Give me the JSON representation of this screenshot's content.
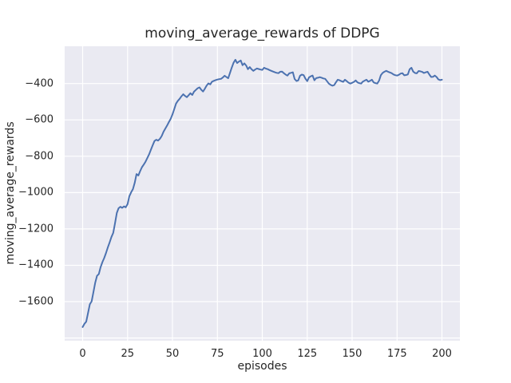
{
  "figure": {
    "background": "#ffffff",
    "axes_background": "#eaeaf2",
    "grid_color": "#ffffff",
    "text_color": "#262626",
    "line_color": "#4c72b0"
  },
  "chart_data": {
    "type": "line",
    "title": "moving_average_rewards of DDPG",
    "xlabel": "episodes",
    "ylabel": "moving_average_rewards",
    "xlim": [
      -10,
      210
    ],
    "ylim": [
      -1815,
      -195
    ],
    "xticks": [
      0,
      25,
      50,
      75,
      100,
      125,
      150,
      175,
      200
    ],
    "yticks": [
      -400,
      -600,
      -800,
      -1000,
      -1200,
      -1400,
      -1600
    ],
    "ygrid": [
      -400,
      -600,
      -800,
      -1000,
      -1200,
      -1400,
      -1600,
      -1800
    ],
    "grid": true,
    "legend_position": "none",
    "x_start": 0,
    "x_step": 1,
    "series": [
      {
        "name": "moving_average_rewards",
        "color": "#4c72b0",
        "values": [
          -1740,
          -1722,
          -1710,
          -1662,
          -1615,
          -1598,
          -1548,
          -1495,
          -1458,
          -1448,
          -1410,
          -1382,
          -1360,
          -1332,
          -1302,
          -1274,
          -1245,
          -1222,
          -1170,
          -1112,
          -1086,
          -1078,
          -1084,
          -1076,
          -1081,
          -1063,
          -1020,
          -998,
          -981,
          -945,
          -898,
          -906,
          -882,
          -860,
          -846,
          -830,
          -810,
          -789,
          -764,
          -739,
          -716,
          -709,
          -714,
          -704,
          -689,
          -665,
          -648,
          -631,
          -612,
          -594,
          -570,
          -540,
          -510,
          -495,
          -484,
          -470,
          -459,
          -468,
          -475,
          -464,
          -453,
          -463,
          -445,
          -435,
          -426,
          -421,
          -434,
          -444,
          -429,
          -411,
          -399,
          -405,
          -390,
          -385,
          -381,
          -378,
          -376,
          -374,
          -367,
          -357,
          -364,
          -371,
          -342,
          -312,
          -286,
          -269,
          -287,
          -279,
          -273,
          -299,
          -289,
          -301,
          -321,
          -309,
          -321,
          -330,
          -323,
          -317,
          -320,
          -323,
          -325,
          -313,
          -318,
          -321,
          -326,
          -330,
          -334,
          -338,
          -341,
          -343,
          -335,
          -334,
          -343,
          -351,
          -356,
          -344,
          -341,
          -338,
          -375,
          -386,
          -383,
          -357,
          -351,
          -354,
          -373,
          -387,
          -366,
          -360,
          -356,
          -382,
          -370,
          -368,
          -365,
          -368,
          -372,
          -374,
          -387,
          -400,
          -407,
          -412,
          -409,
          -393,
          -379,
          -382,
          -387,
          -391,
          -379,
          -387,
          -395,
          -400,
          -396,
          -391,
          -383,
          -394,
          -398,
          -400,
          -389,
          -384,
          -379,
          -390,
          -385,
          -379,
          -394,
          -398,
          -400,
          -384,
          -354,
          -341,
          -335,
          -330,
          -335,
          -339,
          -343,
          -350,
          -354,
          -356,
          -352,
          -345,
          -343,
          -355,
          -353,
          -350,
          -322,
          -313,
          -334,
          -342,
          -344,
          -331,
          -333,
          -336,
          -342,
          -338,
          -335,
          -351,
          -364,
          -363,
          -356,
          -364,
          -377,
          -381,
          -379
        ]
      }
    ]
  }
}
